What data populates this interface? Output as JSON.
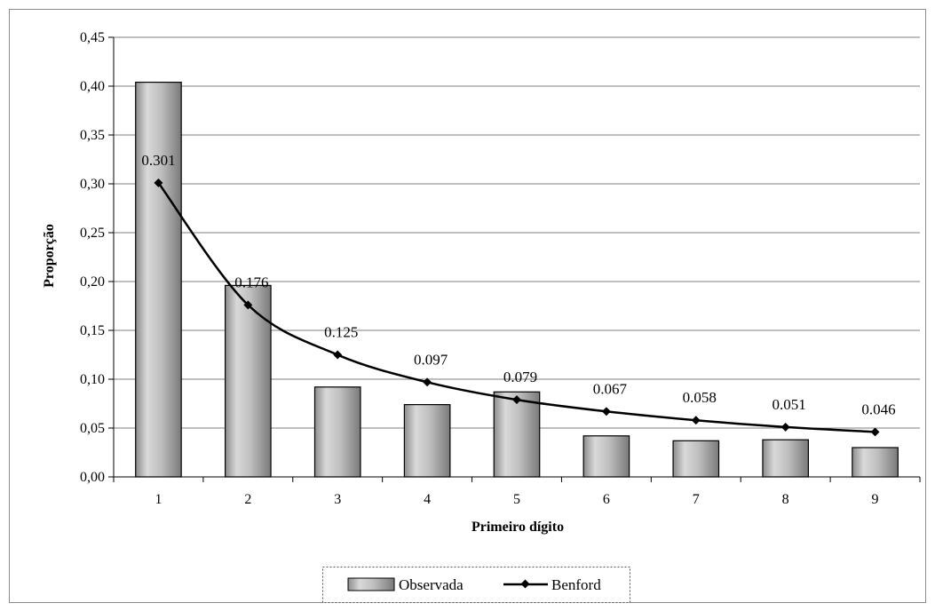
{
  "chart_data": {
    "type": "bar",
    "categories": [
      "1",
      "2",
      "3",
      "4",
      "5",
      "6",
      "7",
      "8",
      "9"
    ],
    "series": [
      {
        "name": "Observada",
        "kind": "bar",
        "values": [
          0.404,
          0.196,
          0.092,
          0.074,
          0.087,
          0.042,
          0.037,
          0.038,
          0.03
        ]
      },
      {
        "name": "Benford",
        "kind": "line",
        "values": [
          0.301,
          0.176,
          0.125,
          0.097,
          0.079,
          0.067,
          0.058,
          0.051,
          0.046
        ],
        "labels": [
          "0.301",
          "0.176",
          "0.125",
          "0.097",
          "0.079",
          "0.067",
          "0.058",
          "0.051",
          "0.046"
        ]
      }
    ],
    "xlabel": "Primeiro dígito",
    "ylabel": "Proporção",
    "ylim": [
      0,
      0.45
    ],
    "yticks": [
      "0,00",
      "0,05",
      "0,10",
      "0,15",
      "0,20",
      "0,25",
      "0,30",
      "0,35",
      "0,40",
      "0,45"
    ],
    "grid": true,
    "legend_position": "bottom",
    "colors": {
      "bar": "#a6a6a6",
      "line": "#000000",
      "grid": "#7f7f7f"
    }
  }
}
